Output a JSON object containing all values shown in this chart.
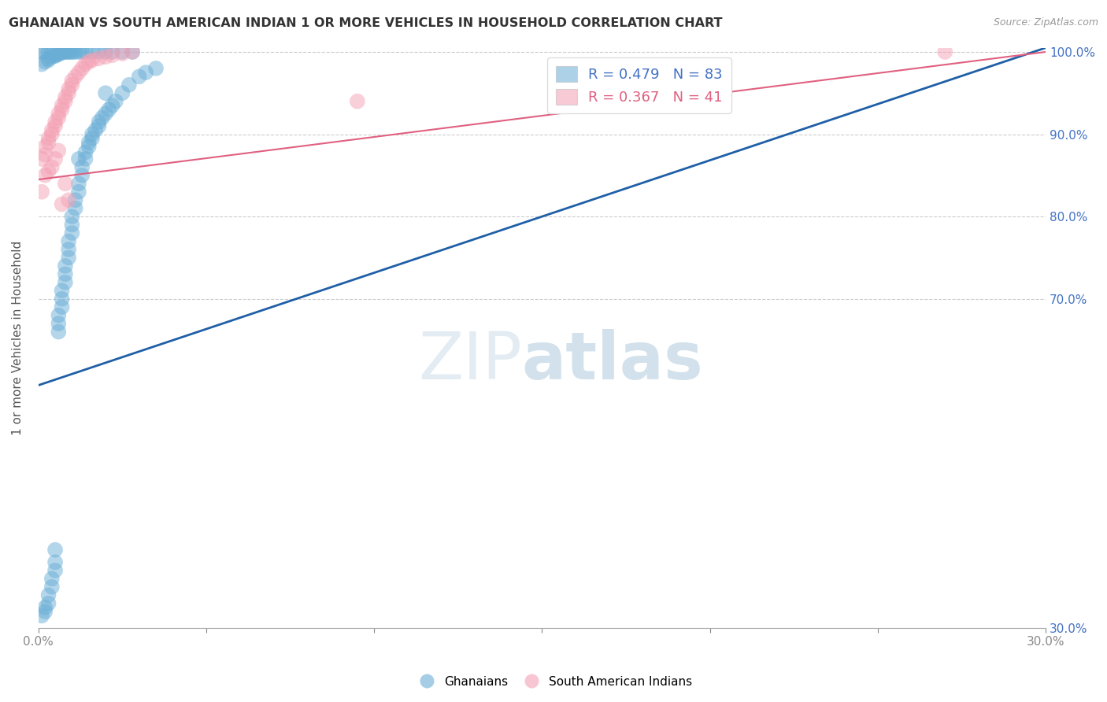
{
  "title": "GHANAIAN VS SOUTH AMERICAN INDIAN 1 OR MORE VEHICLES IN HOUSEHOLD CORRELATION CHART",
  "source": "Source: ZipAtlas.com",
  "ylabel": "1 or more Vehicles in Household",
  "xlim": [
    0.0,
    0.3
  ],
  "ylim": [
    0.3,
    1.005
  ],
  "xticks": [
    0.0,
    0.05,
    0.1,
    0.15,
    0.2,
    0.25,
    0.3
  ],
  "xticklabels": [
    "0.0%",
    "",
    "",
    "",
    "",
    "",
    "30.0%"
  ],
  "yticks": [
    0.3,
    0.7,
    0.8,
    0.9,
    1.0
  ],
  "yticklabels": [
    "30.0%",
    "70.0%",
    "80.0%",
    "90.0%",
    "100.0%"
  ],
  "ghanaian_color": "#6aaed6",
  "sa_indian_color": "#f4a0b4",
  "ghanaian_line_color": "#1f5fa6",
  "sa_indian_line_color": "#e06080",
  "ghana_x": [
    0.001,
    0.002,
    0.002,
    0.003,
    0.003,
    0.004,
    0.004,
    0.005,
    0.005,
    0.005,
    0.006,
    0.006,
    0.006,
    0.007,
    0.007,
    0.007,
    0.008,
    0.008,
    0.008,
    0.009,
    0.009,
    0.009,
    0.01,
    0.01,
    0.01,
    0.011,
    0.011,
    0.012,
    0.012,
    0.013,
    0.013,
    0.014,
    0.014,
    0.015,
    0.015,
    0.016,
    0.016,
    0.017,
    0.018,
    0.018,
    0.019,
    0.02,
    0.021,
    0.022,
    0.023,
    0.025,
    0.027,
    0.03,
    0.032,
    0.035,
    0.001,
    0.002,
    0.003,
    0.003,
    0.004,
    0.005,
    0.005,
    0.006,
    0.006,
    0.007,
    0.007,
    0.008,
    0.008,
    0.009,
    0.009,
    0.01,
    0.01,
    0.011,
    0.012,
    0.013,
    0.014,
    0.016,
    0.018,
    0.02,
    0.022,
    0.025,
    0.028,
    0.001,
    0.002,
    0.003,
    0.004,
    0.012,
    0.02
  ],
  "ghana_y": [
    0.315,
    0.32,
    0.325,
    0.33,
    0.34,
    0.35,
    0.36,
    0.37,
    0.38,
    0.395,
    0.66,
    0.67,
    0.68,
    0.69,
    0.7,
    0.71,
    0.72,
    0.73,
    0.74,
    0.75,
    0.76,
    0.77,
    0.78,
    0.79,
    0.8,
    0.81,
    0.82,
    0.83,
    0.84,
    0.85,
    0.86,
    0.87,
    0.878,
    0.885,
    0.89,
    0.895,
    0.9,
    0.905,
    0.91,
    0.915,
    0.92,
    0.925,
    0.93,
    0.935,
    0.94,
    0.95,
    0.96,
    0.97,
    0.975,
    0.98,
    0.985,
    0.988,
    0.99,
    0.992,
    0.994,
    0.995,
    0.996,
    0.997,
    0.998,
    0.999,
    1.0,
    1.0,
    1.0,
    1.0,
    1.0,
    1.0,
    1.0,
    1.0,
    1.0,
    1.0,
    1.0,
    1.0,
    1.0,
    1.0,
    1.0,
    1.0,
    1.0,
    1.0,
    1.0,
    1.0,
    1.0,
    0.87,
    0.95
  ],
  "sa_x": [
    0.001,
    0.002,
    0.002,
    0.003,
    0.003,
    0.004,
    0.004,
    0.005,
    0.005,
    0.006,
    0.006,
    0.007,
    0.007,
    0.008,
    0.008,
    0.009,
    0.009,
    0.01,
    0.01,
    0.011,
    0.012,
    0.013,
    0.014,
    0.015,
    0.016,
    0.018,
    0.02,
    0.022,
    0.025,
    0.028,
    0.001,
    0.002,
    0.003,
    0.004,
    0.005,
    0.006,
    0.007,
    0.008,
    0.009,
    0.27,
    0.095
  ],
  "sa_y": [
    0.87,
    0.875,
    0.885,
    0.89,
    0.895,
    0.9,
    0.905,
    0.91,
    0.915,
    0.92,
    0.925,
    0.93,
    0.935,
    0.94,
    0.945,
    0.95,
    0.955,
    0.96,
    0.965,
    0.97,
    0.975,
    0.98,
    0.985,
    0.988,
    0.99,
    0.992,
    0.994,
    0.996,
    0.998,
    1.0,
    0.83,
    0.85,
    0.855,
    0.86,
    0.87,
    0.88,
    0.815,
    0.84,
    0.82,
    1.0,
    0.94
  ],
  "ghana_line_x": [
    0.0,
    0.3
  ],
  "ghana_line_y": [
    0.595,
    1.005
  ],
  "sa_line_x": [
    0.0,
    0.3
  ],
  "sa_line_y": [
    0.845,
    1.0
  ]
}
